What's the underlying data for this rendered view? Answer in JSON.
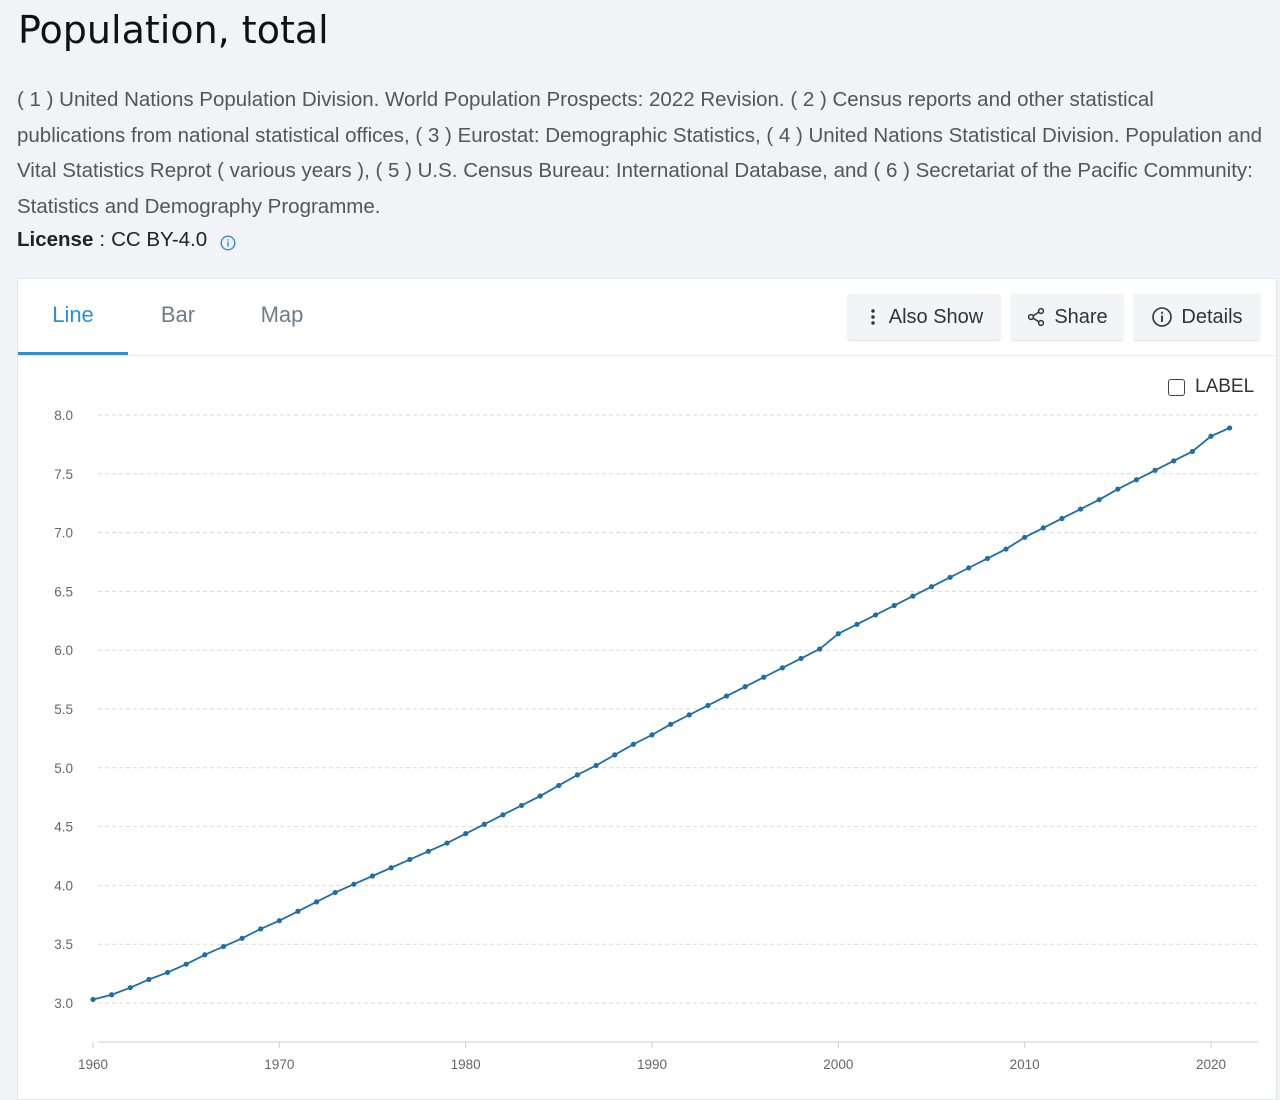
{
  "page": {
    "title": "Population, total",
    "source": "( 1 ) United Nations Population Division. World Population Prospects: 2022 Revision. ( 2 ) Census reports and other statistical publications from national statistical offices, ( 3 ) Eurostat: Demographic Statistics, ( 4 ) United Nations Statistical Division. Population and Vital Statistics Reprot ( various years ), ( 5 ) U.S. Census Bureau: International Database, and ( 6 ) Secretariat of the Pacific Community: Statistics and Demography Programme.",
    "license_label": "License",
    "license_sep": ":",
    "license_value": "CC BY-4.0"
  },
  "tabs": [
    {
      "label": "Line",
      "active": true
    },
    {
      "label": "Bar",
      "active": false
    },
    {
      "label": "Map",
      "active": false
    }
  ],
  "toolbar": {
    "also_show": "Also Show",
    "share": "Share",
    "details": "Details"
  },
  "label_toggle": {
    "label": "LABEL",
    "checked": false
  },
  "colors": {
    "accent": "#2d8fd6",
    "series": "#1f6ea8",
    "grid": "#d9d9d9"
  },
  "chart_data": {
    "type": "line",
    "title": "",
    "xlabel": "",
    "ylabel": "",
    "xlim": [
      1960,
      2021
    ],
    "ylim": [
      3.0,
      8.0
    ],
    "x_ticks": [
      "1960",
      "1970",
      "1980",
      "1990",
      "2000",
      "2010",
      "2020"
    ],
    "y_ticks": [
      "3.0",
      "3.5",
      "4.0",
      "4.5",
      "5.0",
      "5.5",
      "6.0",
      "6.5",
      "7.0",
      "7.5",
      "8.0"
    ],
    "grid": true,
    "series": [
      {
        "name": "",
        "x": [
          1960,
          1961,
          1962,
          1963,
          1964,
          1965,
          1966,
          1967,
          1968,
          1969,
          1970,
          1971,
          1972,
          1973,
          1974,
          1975,
          1976,
          1977,
          1978,
          1979,
          1980,
          1981,
          1982,
          1983,
          1984,
          1985,
          1986,
          1987,
          1988,
          1989,
          1990,
          1991,
          1992,
          1993,
          1994,
          1995,
          1996,
          1997,
          1998,
          1999,
          2000,
          2001,
          2002,
          2003,
          2004,
          2005,
          2006,
          2007,
          2008,
          2009,
          2010,
          2011,
          2012,
          2013,
          2014,
          2015,
          2016,
          2017,
          2018,
          2019,
          2020,
          2021
        ],
        "values": [
          3.03,
          3.07,
          3.13,
          3.2,
          3.26,
          3.33,
          3.41,
          3.48,
          3.55,
          3.63,
          3.7,
          3.78,
          3.86,
          3.94,
          4.01,
          4.08,
          4.15,
          4.22,
          4.29,
          4.36,
          4.44,
          4.52,
          4.6,
          4.68,
          4.76,
          4.85,
          4.94,
          5.02,
          5.11,
          5.2,
          5.28,
          5.37,
          5.45,
          5.53,
          5.61,
          5.69,
          5.77,
          5.85,
          5.93,
          6.01,
          6.14,
          6.22,
          6.3,
          6.38,
          6.46,
          6.54,
          6.62,
          6.7,
          6.78,
          6.86,
          6.96,
          7.04,
          7.12,
          7.2,
          7.28,
          7.37,
          7.45,
          7.53,
          7.61,
          7.69,
          7.82,
          7.89
        ]
      }
    ]
  }
}
